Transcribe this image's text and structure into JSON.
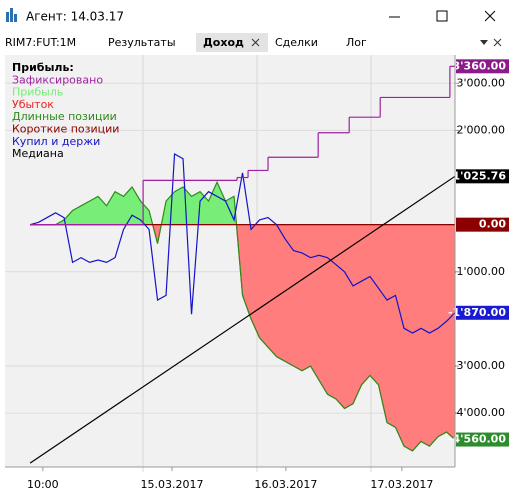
{
  "window": {
    "title": "Агент: 14.03.17"
  },
  "tabs": [
    "RIM7:FUT:1M",
    "Результаты",
    "Доход",
    "Сделки",
    "Лог"
  ],
  "chart_data": {
    "type": "line",
    "legend_title": "Прибыль:",
    "xlim": [
      -5.9,
      100
    ],
    "ylim": [
      -5100,
      3600
    ],
    "xticks": [
      {
        "value": 3,
        "label": "10:00"
      },
      {
        "value": 33.4,
        "label": "15.03.2017"
      },
      {
        "value": 60.2,
        "label": "16.03.2017"
      },
      {
        "value": 87.5,
        "label": "17.03.2017"
      }
    ],
    "yticks": [
      {
        "value": 3000,
        "label": "3'000.00"
      },
      {
        "value": 2000,
        "label": "2'000.00"
      },
      {
        "value": -1000,
        "label": "-1'000.00"
      },
      {
        "value": -3000,
        "label": "-3'000.00"
      },
      {
        "value": -4000,
        "label": "-4'000.00"
      }
    ],
    "grid": true,
    "fills": [
      {
        "name": "Прибыль",
        "color": "#77ee77"
      },
      {
        "name": "Убыток",
        "color": "#ff7d7d"
      }
    ],
    "series": [
      {
        "name": "Зафиксировано",
        "color": "#a020a0",
        "style": "step",
        "x": [
          0,
          26.6,
          48.7,
          51.3,
          56,
          67.8,
          75.1,
          82.4,
          98.8
        ],
        "values": [
          0,
          940,
          1000,
          1150,
          1430,
          1950,
          2280,
          2700,
          3360
        ],
        "end_label": "3'360.00",
        "end_label_color": "#8b1a8b"
      },
      {
        "name": "Длинные позиции",
        "color": "#2f8a1c",
        "style": "area",
        "x": [
          0,
          2,
          4,
          6,
          8,
          10,
          12,
          14,
          16,
          18,
          20,
          22,
          24,
          26,
          28,
          30,
          32,
          34,
          36,
          38,
          40,
          42,
          44,
          46,
          48,
          50,
          52,
          54,
          56,
          58,
          60,
          62,
          64,
          66,
          68,
          70,
          72,
          74,
          76,
          78,
          80,
          82,
          84,
          86,
          88,
          90,
          92,
          94,
          96,
          98,
          100
        ],
        "values": [
          0,
          0,
          0,
          0,
          100,
          300,
          400,
          500,
          600,
          400,
          700,
          600,
          800,
          500,
          300,
          -400,
          500,
          700,
          800,
          600,
          700,
          500,
          900,
          500,
          600,
          -1500,
          -2000,
          -2400,
          -2600,
          -2800,
          -2900,
          -3000,
          -3100,
          -3000,
          -3300,
          -3600,
          -3700,
          -3900,
          -3800,
          -3400,
          -3200,
          -3400,
          -4200,
          -4300,
          -4700,
          -4800,
          -4600,
          -4700,
          -4500,
          -4400,
          -4560
        ],
        "end_label": "-4'560.00",
        "end_label_color": "#2e8b2e"
      },
      {
        "name": "Короткие позиции",
        "color": "#8b0000",
        "style": "line",
        "x": [
          0,
          100
        ],
        "values": [
          0,
          0
        ],
        "end_label": "0.00",
        "end_label_color": "#8b0000"
      },
      {
        "name": "Купил и держи",
        "color": "#1414c8",
        "style": "line",
        "x": [
          0,
          2,
          4,
          6,
          8,
          10,
          12,
          14,
          16,
          18,
          20,
          22,
          24,
          26,
          28,
          30,
          32,
          34,
          36,
          38,
          40,
          42,
          44,
          46,
          48,
          50,
          52,
          54,
          56,
          58,
          60,
          62,
          64,
          66,
          68,
          70,
          72,
          74,
          76,
          78,
          80,
          82,
          84,
          86,
          88,
          90,
          92,
          94,
          96,
          98,
          100
        ],
        "values": [
          0,
          50,
          150,
          250,
          150,
          -800,
          -700,
          -800,
          -750,
          -800,
          -700,
          -100,
          200,
          100,
          -100,
          -1600,
          -1500,
          1500,
          1400,
          -1900,
          500,
          700,
          600,
          500,
          100,
          1100,
          -100,
          100,
          150,
          0,
          -300,
          -550,
          -600,
          -700,
          -650,
          -700,
          -850,
          -1000,
          -1300,
          -1200,
          -1100,
          -1350,
          -1600,
          -1500,
          -2200,
          -2300,
          -2200,
          -2300,
          -2200,
          -2050,
          -1870
        ],
        "end_label": "-1'870.00",
        "end_label_color": "#1a1ad0"
      },
      {
        "name": "Медиана",
        "color": "#000000",
        "style": "line",
        "x": [
          0,
          100
        ],
        "values": [
          -5060,
          1025.76
        ],
        "end_label": "1'025.76",
        "end_label_color": "#000000"
      }
    ]
  }
}
